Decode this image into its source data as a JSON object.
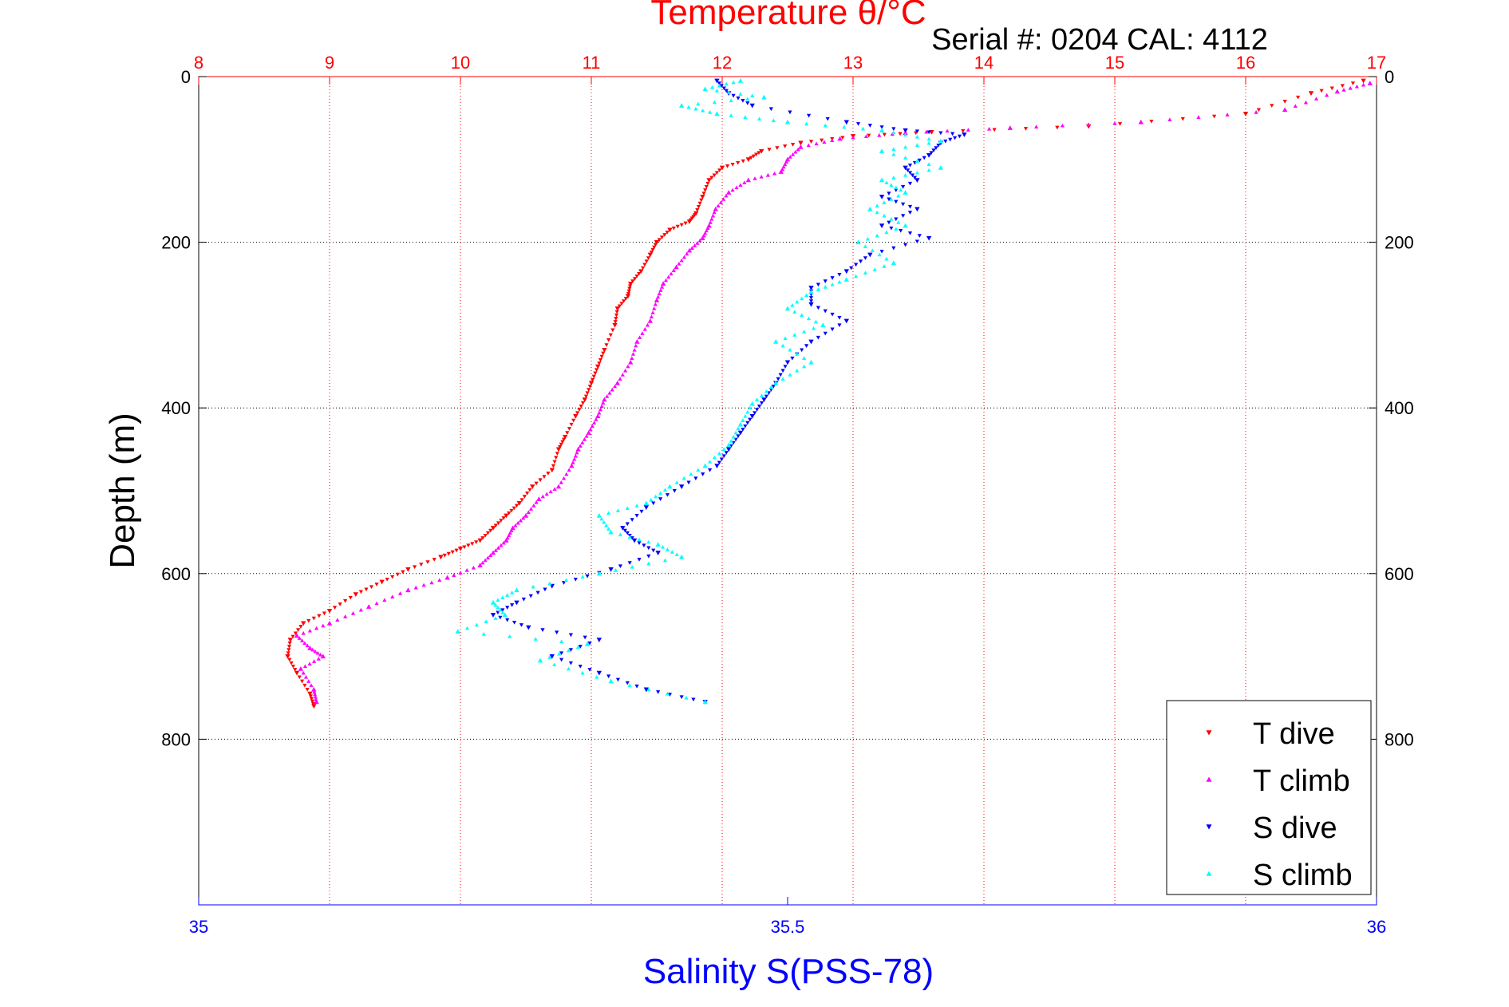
{
  "chart_data": {
    "type": "scatter",
    "title": "Temperature θ/°C",
    "subtitle": "Serial #: 0204  CAL: 4112",
    "ylabel": "Depth (m)",
    "xlabel": "Salinity S(PSS-78)",
    "temperature_axis": {
      "label": "Temperature θ/°C",
      "lim": [
        8,
        17
      ],
      "ticks": [
        "8",
        "9",
        "10",
        "11",
        "12",
        "13",
        "14",
        "15",
        "16",
        "17"
      ],
      "color": "#ff0000"
    },
    "salinity_axis": {
      "label": "Salinity S(PSS-78)",
      "lim": [
        35,
        36
      ],
      "ticks": [
        "35",
        "35.5",
        "36"
      ],
      "color": "#0000ff"
    },
    "depth_axis": {
      "lim": [
        0,
        1000
      ],
      "reversed": true,
      "ticks": [
        "0",
        "200",
        "400",
        "600",
        "800"
      ]
    },
    "grid": true,
    "legend_position": "bottom-right",
    "series": [
      {
        "name": "T dive",
        "axis": "temperature",
        "color": "#ff0000",
        "marker": "triangle-down",
        "points": [
          [
            16.9,
            5
          ],
          [
            16.5,
            20
          ],
          [
            16.0,
            45
          ],
          [
            14.8,
            60
          ],
          [
            13.6,
            67
          ],
          [
            13.0,
            72
          ],
          [
            12.6,
            80
          ],
          [
            12.3,
            90
          ],
          [
            12.2,
            100
          ],
          [
            12.0,
            110
          ],
          [
            11.9,
            125
          ],
          [
            11.85,
            145
          ],
          [
            11.8,
            165
          ],
          [
            11.75,
            175
          ],
          [
            11.6,
            185
          ],
          [
            11.5,
            200
          ],
          [
            11.45,
            215
          ],
          [
            11.38,
            235
          ],
          [
            11.3,
            250
          ],
          [
            11.28,
            265
          ],
          [
            11.2,
            280
          ],
          [
            11.18,
            300
          ],
          [
            11.1,
            330
          ],
          [
            11.05,
            350
          ],
          [
            11.0,
            370
          ],
          [
            10.95,
            390
          ],
          [
            10.88,
            410
          ],
          [
            10.8,
            435
          ],
          [
            10.75,
            450
          ],
          [
            10.7,
            475
          ],
          [
            10.55,
            495
          ],
          [
            10.45,
            515
          ],
          [
            10.35,
            530
          ],
          [
            10.25,
            545
          ],
          [
            10.15,
            560
          ],
          [
            10.0,
            570
          ],
          [
            9.85,
            580
          ],
          [
            9.6,
            595
          ],
          [
            9.4,
            610
          ],
          [
            9.2,
            625
          ],
          [
            9.0,
            645
          ],
          [
            8.8,
            660
          ],
          [
            8.7,
            680
          ],
          [
            8.68,
            700
          ],
          [
            8.75,
            720
          ],
          [
            8.85,
            745
          ],
          [
            8.88,
            760
          ]
        ]
      },
      {
        "name": "T climb",
        "axis": "temperature",
        "color": "#ff00ff",
        "marker": "triangle-up",
        "points": [
          [
            16.95,
            8
          ],
          [
            16.7,
            18
          ],
          [
            16.3,
            40
          ],
          [
            15.2,
            55
          ],
          [
            14.2,
            62
          ],
          [
            13.4,
            68
          ],
          [
            12.9,
            75
          ],
          [
            12.6,
            85
          ],
          [
            12.5,
            100
          ],
          [
            12.45,
            115
          ],
          [
            12.2,
            125
          ],
          [
            12.05,
            140
          ],
          [
            11.95,
            160
          ],
          [
            11.9,
            180
          ],
          [
            11.85,
            195
          ],
          [
            11.75,
            210
          ],
          [
            11.65,
            230
          ],
          [
            11.55,
            250
          ],
          [
            11.5,
            270
          ],
          [
            11.45,
            295
          ],
          [
            11.35,
            320
          ],
          [
            11.3,
            345
          ],
          [
            11.2,
            370
          ],
          [
            11.1,
            390
          ],
          [
            11.05,
            410
          ],
          [
            10.98,
            430
          ],
          [
            10.9,
            450
          ],
          [
            10.85,
            470
          ],
          [
            10.75,
            495
          ],
          [
            10.6,
            510
          ],
          [
            10.5,
            530
          ],
          [
            10.4,
            545
          ],
          [
            10.35,
            560
          ],
          [
            10.25,
            575
          ],
          [
            10.15,
            590
          ],
          [
            9.9,
            605
          ],
          [
            9.6,
            620
          ],
          [
            9.3,
            640
          ],
          [
            9.0,
            660
          ],
          [
            8.75,
            675
          ],
          [
            8.85,
            690
          ],
          [
            8.95,
            700
          ],
          [
            8.78,
            715
          ],
          [
            8.88,
            740
          ],
          [
            8.9,
            755
          ]
        ]
      },
      {
        "name": "S dive",
        "axis": "salinity",
        "color": "#0000ff",
        "marker": "triangle-down",
        "points": [
          [
            35.44,
            5
          ],
          [
            35.45,
            20
          ],
          [
            35.47,
            35
          ],
          [
            35.55,
            55
          ],
          [
            35.6,
            65
          ],
          [
            35.65,
            70
          ],
          [
            35.63,
            80
          ],
          [
            35.62,
            95
          ],
          [
            35.6,
            110
          ],
          [
            35.61,
            125
          ],
          [
            35.58,
            145
          ],
          [
            35.61,
            160
          ],
          [
            35.58,
            180
          ],
          [
            35.62,
            195
          ],
          [
            35.57,
            215
          ],
          [
            35.55,
            235
          ],
          [
            35.52,
            255
          ],
          [
            35.52,
            275
          ],
          [
            35.55,
            295
          ],
          [
            35.52,
            320
          ],
          [
            35.5,
            345
          ],
          [
            35.49,
            370
          ],
          [
            35.48,
            390
          ],
          [
            35.47,
            410
          ],
          [
            35.46,
            430
          ],
          [
            35.45,
            450
          ],
          [
            35.44,
            470
          ],
          [
            35.41,
            495
          ],
          [
            35.38,
            520
          ],
          [
            35.36,
            545
          ],
          [
            35.37,
            560
          ],
          [
            35.39,
            575
          ],
          [
            35.35,
            595
          ],
          [
            35.3,
            615
          ],
          [
            35.27,
            635
          ],
          [
            35.25,
            650
          ],
          [
            35.28,
            665
          ],
          [
            35.34,
            680
          ],
          [
            35.3,
            700
          ],
          [
            35.34,
            720
          ],
          [
            35.38,
            740
          ],
          [
            35.43,
            755
          ]
        ]
      },
      {
        "name": "S climb",
        "axis": "salinity",
        "color": "#00ffff",
        "marker": "triangle-up",
        "points": [
          [
            35.46,
            5
          ],
          [
            35.43,
            15
          ],
          [
            35.48,
            25
          ],
          [
            35.41,
            35
          ],
          [
            35.44,
            45
          ],
          [
            35.5,
            55
          ],
          [
            35.58,
            65
          ],
          [
            35.63,
            78
          ],
          [
            35.58,
            90
          ],
          [
            35.63,
            110
          ],
          [
            35.58,
            125
          ],
          [
            35.6,
            140
          ],
          [
            35.57,
            160
          ],
          [
            35.6,
            180
          ],
          [
            35.56,
            200
          ],
          [
            35.59,
            225
          ],
          [
            35.55,
            245
          ],
          [
            35.52,
            260
          ],
          [
            35.5,
            280
          ],
          [
            35.53,
            300
          ],
          [
            35.49,
            320
          ],
          [
            35.52,
            345
          ],
          [
            35.49,
            370
          ],
          [
            35.47,
            395
          ],
          [
            35.46,
            420
          ],
          [
            35.45,
            445
          ],
          [
            35.43,
            470
          ],
          [
            35.4,
            495
          ],
          [
            35.38,
            515
          ],
          [
            35.34,
            530
          ],
          [
            35.35,
            550
          ],
          [
            35.39,
            565
          ],
          [
            35.41,
            580
          ],
          [
            35.34,
            600
          ],
          [
            35.27,
            620
          ],
          [
            35.25,
            635
          ],
          [
            35.26,
            650
          ],
          [
            35.22,
            670
          ],
          [
            35.33,
            685
          ],
          [
            35.29,
            705
          ],
          [
            35.35,
            730
          ],
          [
            35.43,
            755
          ]
        ]
      }
    ],
    "legend": [
      "T dive",
      "T climb",
      "S dive",
      "S climb"
    ]
  }
}
